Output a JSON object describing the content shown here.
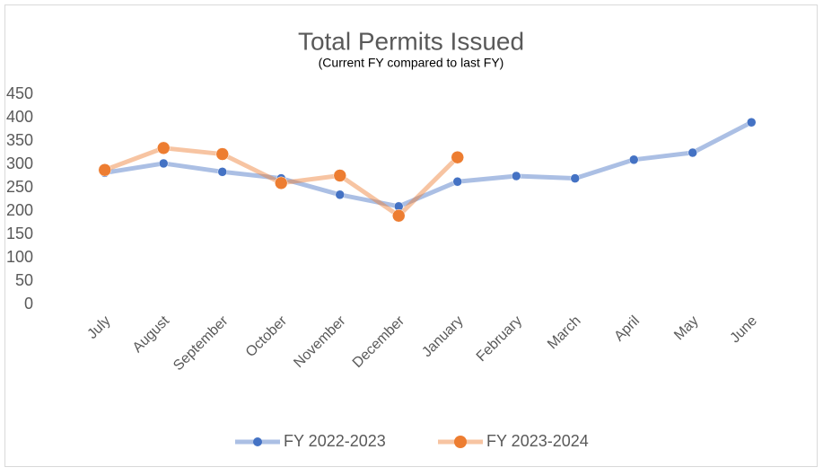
{
  "chart_data": {
    "type": "line",
    "title": "Total Permits Issued",
    "subtitle": "(Current FY compared to last FY)",
    "categories": [
      "July",
      "August",
      "September",
      "October",
      "November",
      "December",
      "January",
      "February",
      "March",
      "April",
      "May",
      "June"
    ],
    "series": [
      {
        "name": "FY 2022-2023",
        "color": "#4472c4",
        "values": [
          282,
          302,
          284,
          270,
          235,
          210,
          263,
          275,
          270,
          310,
          325,
          390
        ]
      },
      {
        "name": "FY 2023-2024",
        "color": "#ed7d31",
        "values": [
          288,
          335,
          322,
          260,
          276,
          190,
          315,
          null,
          null,
          null,
          null,
          null
        ]
      }
    ],
    "ylim": [
      0,
      450
    ],
    "yticks": [
      0,
      50,
      100,
      150,
      200,
      250,
      300,
      350,
      400,
      450
    ],
    "grid": false,
    "legend": "bottom"
  }
}
